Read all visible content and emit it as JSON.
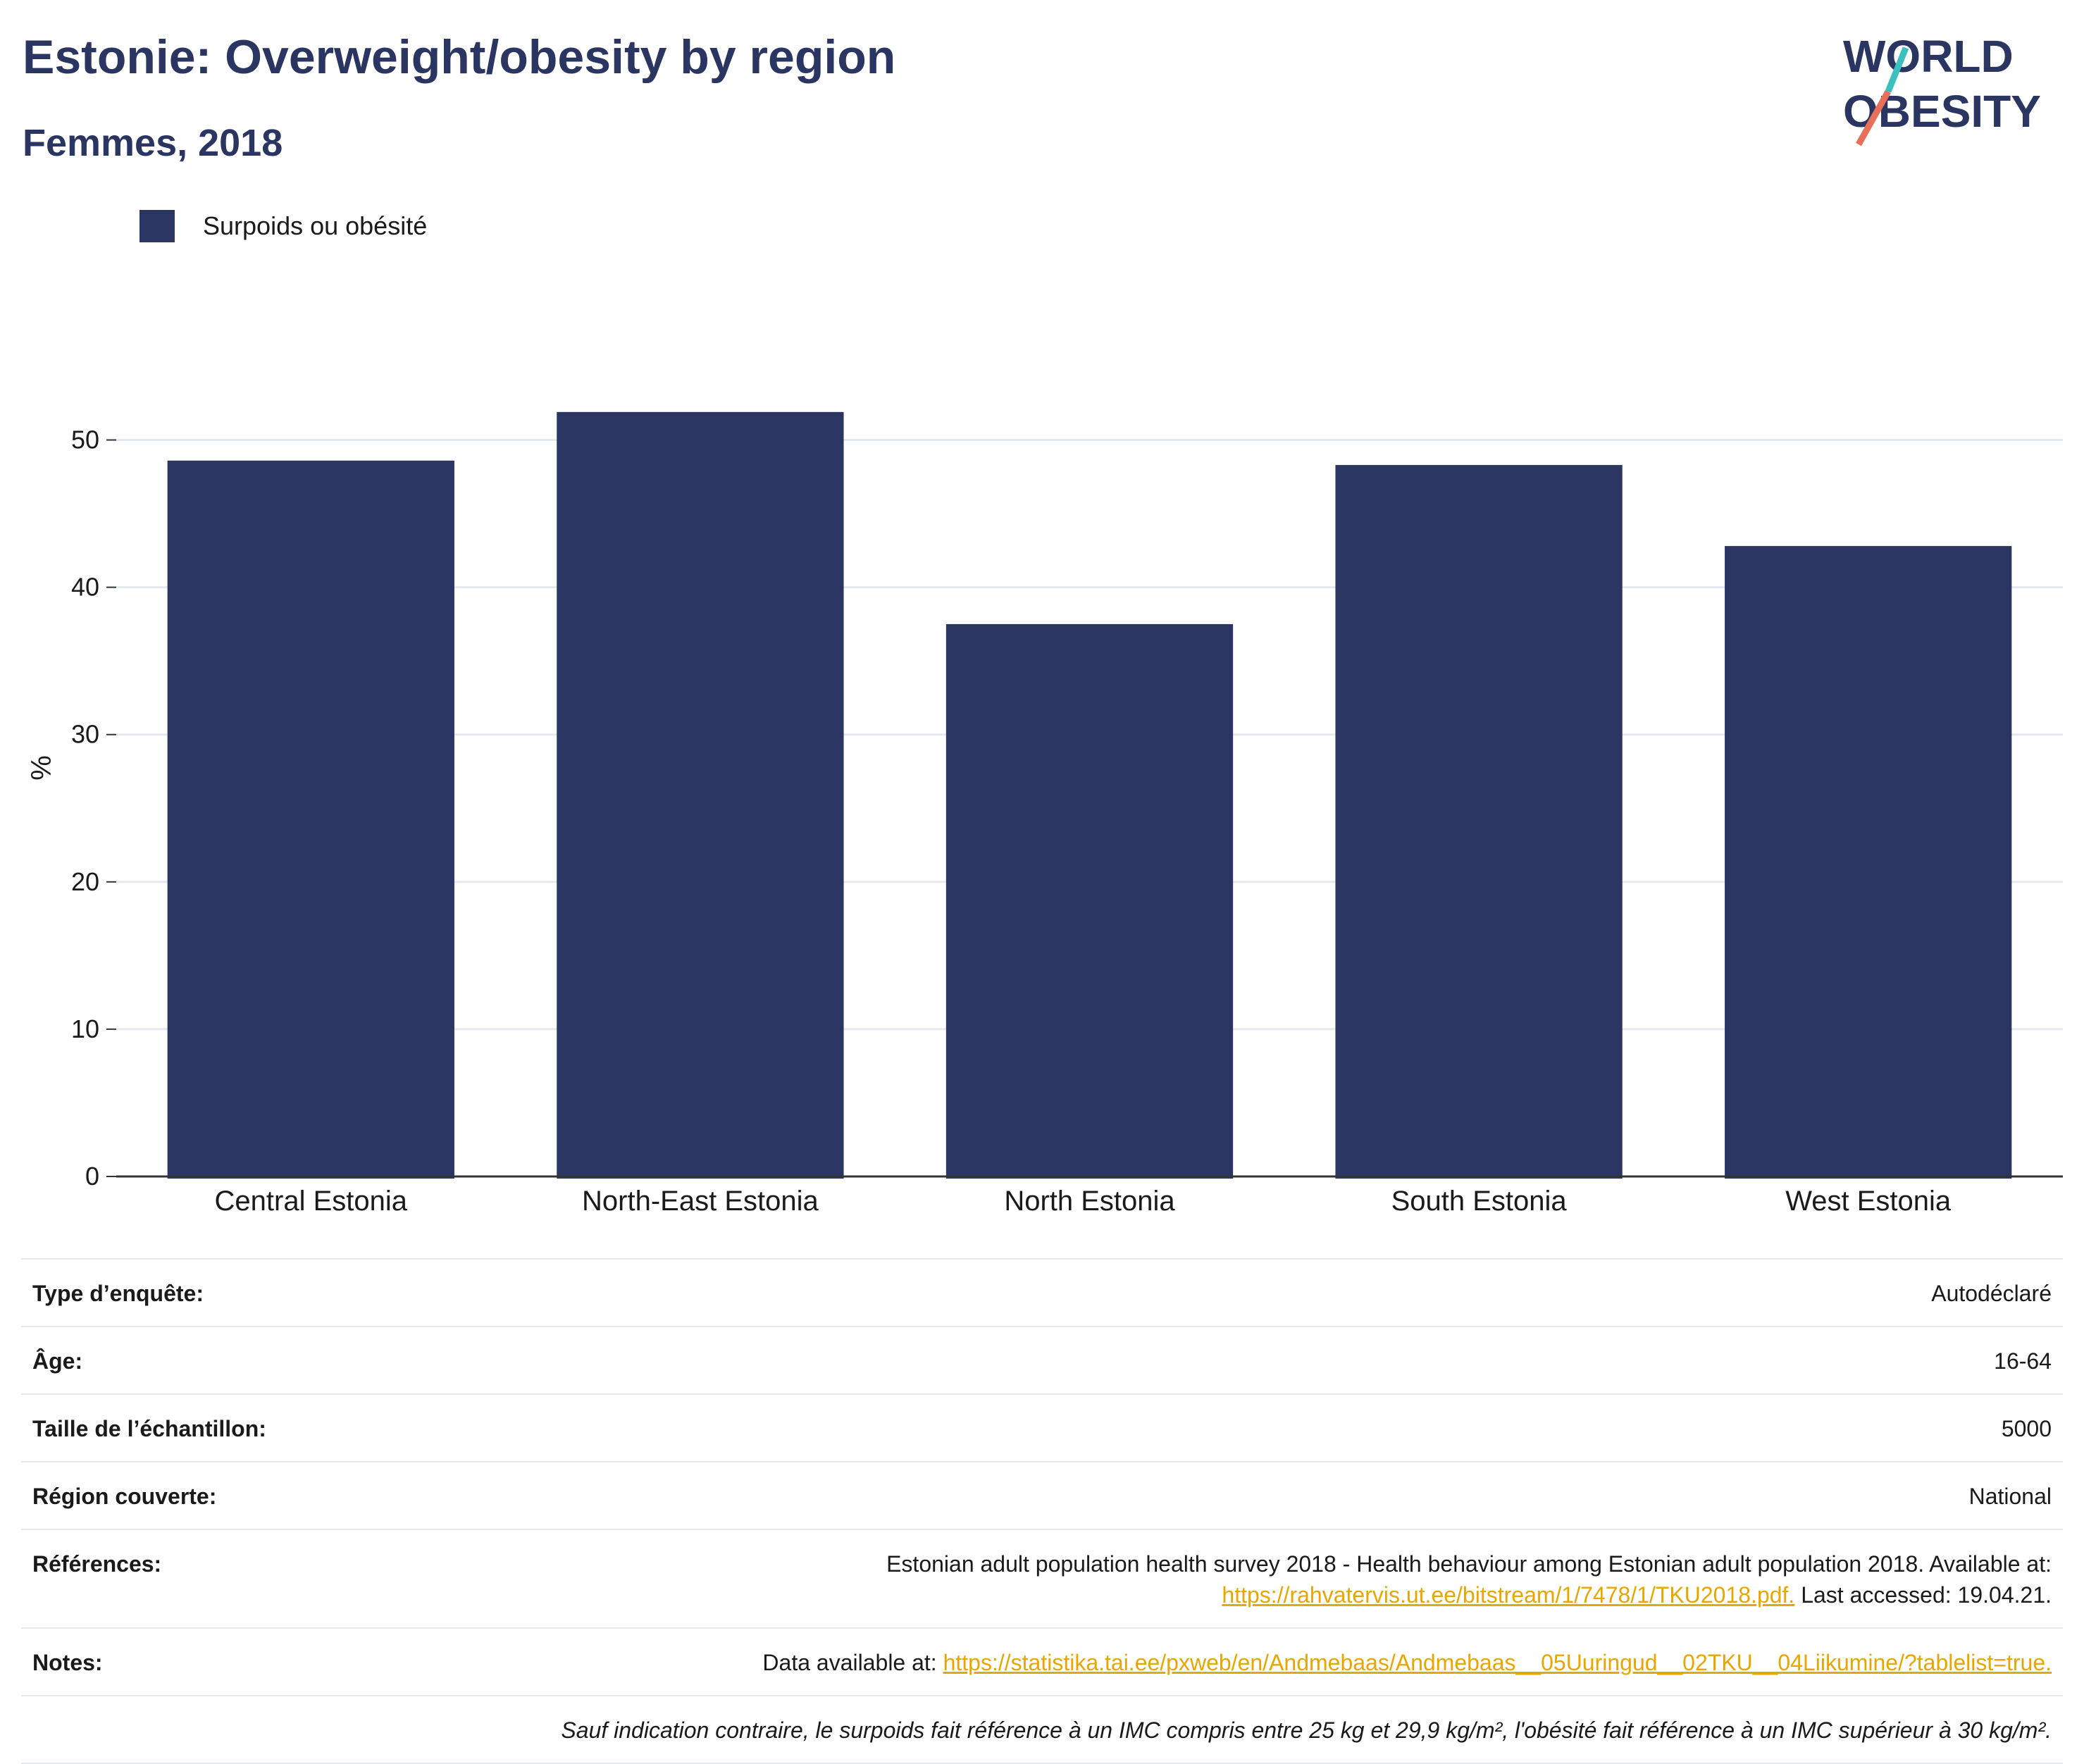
{
  "title": "Estonie: Overweight/obesity by region",
  "subtitle": "Femmes, 2018",
  "logo": {
    "line1": "WORLD",
    "line2": "OBESITY",
    "colors": {
      "text": "#2a3561",
      "slash_red": "#e8705a",
      "slash_teal": "#3bbfbf"
    }
  },
  "colors": {
    "bar": "#2a3561",
    "grid": "#e6e8f0",
    "axis": "#333333",
    "link": "#e8a600"
  },
  "chart_data": {
    "type": "bar",
    "categories": [
      "Central Estonia",
      "North-East Estonia",
      "North Estonia",
      "South Estonia",
      "West Estonia"
    ],
    "series": [
      {
        "name": "Surpoids ou obésité",
        "values": [
          48.6,
          51.9,
          37.5,
          48.3,
          42.8
        ]
      }
    ],
    "ylabel": "%",
    "ylim": [
      0,
      55
    ],
    "yticks": [
      0,
      10,
      20,
      30,
      40,
      50
    ],
    "grid": true,
    "legend_position": "top-left"
  },
  "meta": {
    "survey_type": {
      "label": "Type d’enquête:",
      "value": "Autodéclaré"
    },
    "age": {
      "label": "Âge:",
      "value": "16-64"
    },
    "sample_size": {
      "label": "Taille de l’échantillon:",
      "value": "5000"
    },
    "region": {
      "label": "Région couverte:",
      "value": "National"
    },
    "references": {
      "label": "Références:",
      "text1": "Estonian adult population health survey 2018 - Health behaviour among Estonian adult population 2018. Available at:",
      "link": "https://rahvatervis.ut.ee/bitstream/1/7478/1/TKU2018.pdf.",
      "text2": " Last accessed: 19.04.21."
    },
    "notes": {
      "label": "Notes:",
      "text": "Data available at: ",
      "link": "https://statistika.tai.ee/pxweb/en/Andmebaas/Andmebaas__05Uuringud__02TKU__04Liikumine/?tablelist=true."
    },
    "footnote": "Sauf indication contraire, le surpoids fait référence à un IMC compris entre 25 kg et 29,9 kg/m², l'obésité fait référence à un IMC supérieur à 30 kg/m²."
  }
}
